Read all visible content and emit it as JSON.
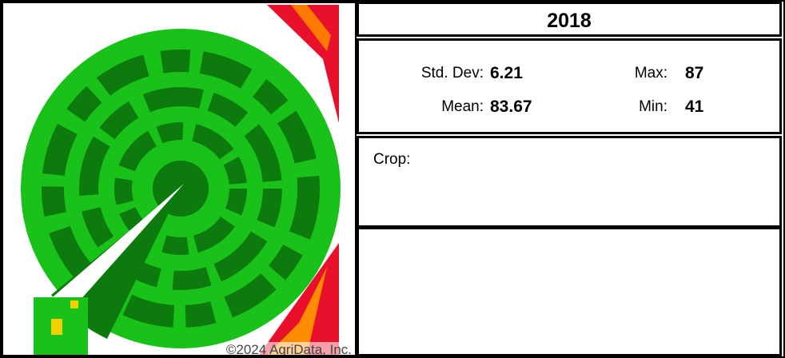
{
  "header": {
    "title": "2018"
  },
  "stats": {
    "std_dev": {
      "label": "Std. Dev:",
      "value": "6.21"
    },
    "max": {
      "label": "Max:",
      "value": "87"
    },
    "mean": {
      "label": "Mean:",
      "value": "83.67"
    },
    "min": {
      "label": "Min:",
      "value": "41"
    }
  },
  "crop": {
    "label": "Crop:"
  },
  "map": {
    "copyright": "©2024 AgriData, Inc."
  }
}
